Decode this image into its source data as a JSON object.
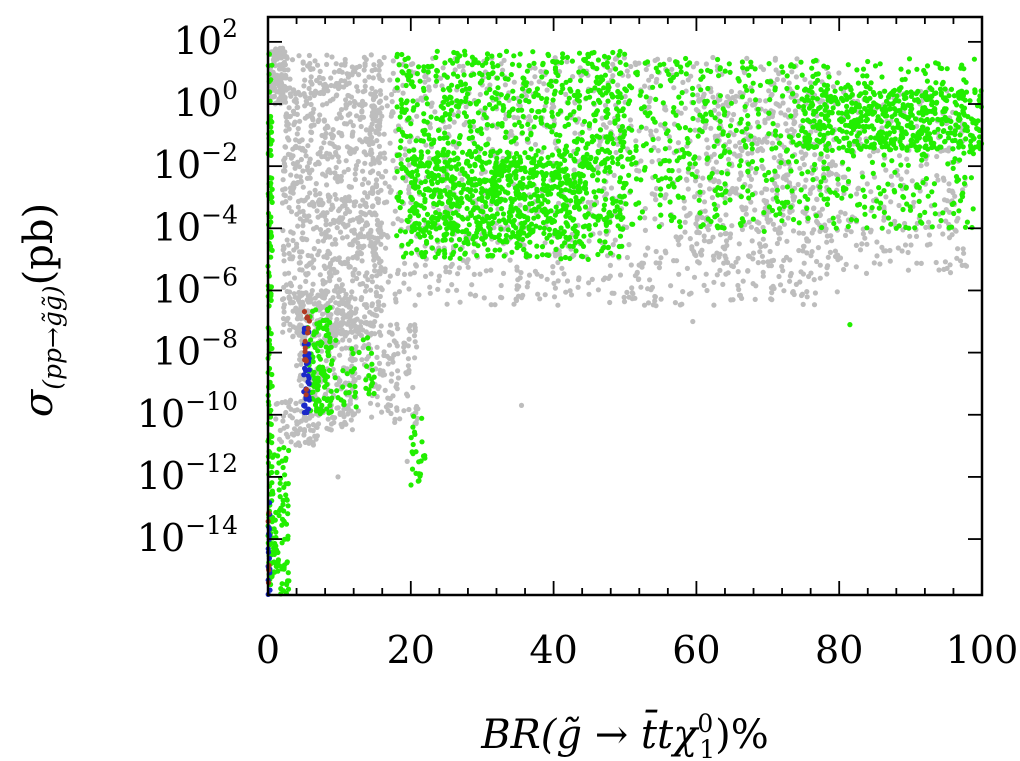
{
  "chart_data": {
    "type": "scatter",
    "title": "",
    "xlabel": {
      "main": "BR(",
      "symbols": "g̃ → t̄tχ",
      "sup": "0",
      "sub": "1",
      "end": ")%"
    },
    "ylabel": {
      "sigma": "σ",
      "subscript": "(pp→g̃g̃)",
      "unit": "(pb)"
    },
    "xlim": [
      0,
      100
    ],
    "ylim_log10": [
      -15.8,
      2.8
    ],
    "y_scale": "log",
    "x_ticks": [
      0,
      20,
      40,
      60,
      80,
      100
    ],
    "x_tick_labels": [
      "0",
      "20",
      "40",
      "60",
      "80",
      "100"
    ],
    "y_tick_exponents": [
      2,
      0,
      -2,
      -4,
      -6,
      -8,
      -10,
      -12,
      -14
    ],
    "y_tick_labels": [
      {
        "base": "10",
        "exp": "2"
      },
      {
        "base": "10",
        "exp": "0"
      },
      {
        "base": "10",
        "exp": "−2"
      },
      {
        "base": "10",
        "exp": "−4"
      },
      {
        "base": "10",
        "exp": "−6"
      },
      {
        "base": "10",
        "exp": "−8"
      },
      {
        "base": "10",
        "exp": "−10"
      },
      {
        "base": "10",
        "exp": "−12"
      },
      {
        "base": "10",
        "exp": "−14"
      }
    ],
    "grid": false,
    "legend": "none",
    "series": [
      {
        "color": "#bdbdbd",
        "regions": [
          {
            "x": [
              0.3,
              2.5
            ],
            "log10y": [
              0.0,
              1.8
            ],
            "n": 120
          },
          {
            "x": [
              2,
              16
            ],
            "log10y": [
              -7.5,
              1.6
            ],
            "n": 900
          },
          {
            "x": [
              4,
              12
            ],
            "log10y": [
              -10.5,
              -6
            ],
            "n": 260
          },
          {
            "x": [
              12,
              21
            ],
            "log10y": [
              -10.3,
              -7
            ],
            "n": 140
          },
          {
            "x": [
              14,
              80
            ],
            "log10y": [
              -6.5,
              1.5
            ],
            "n": 1200
          },
          {
            "x": [
              60,
              98
            ],
            "log10y": [
              -5.5,
              0.5
            ],
            "n": 500
          },
          {
            "x": [
              1,
              7
            ],
            "log10y": [
              -11,
              -9.5
            ],
            "n": 60
          }
        ],
        "points": [
          [
            35.5,
            -9.7
          ],
          [
            59.5,
            -7.0
          ],
          [
            9.8,
            -12.0
          ],
          [
            19.5,
            -11.5
          ]
        ]
      },
      {
        "color": "#22ee00",
        "regions": [
          {
            "x": [
              0,
              0.6
            ],
            "log10y": [
              -15.8,
              1.8
            ],
            "n": 140
          },
          {
            "x": [
              0.5,
              3
            ],
            "log10y": [
              -15.8,
              -11
            ],
            "n": 90
          },
          {
            "x": [
              5.5,
              9
            ],
            "log10y": [
              -10,
              -6.5
            ],
            "n": 120
          },
          {
            "x": [
              9,
              15
            ],
            "log10y": [
              -9.8,
              -7.5
            ],
            "n": 40
          },
          {
            "x": [
              20,
              22
            ],
            "log10y": [
              -12.3,
              -10
            ],
            "n": 25
          },
          {
            "x": [
              18,
              50
            ],
            "log10y": [
              -5,
              1.7
            ],
            "n": 900
          },
          {
            "x": [
              20,
              45
            ],
            "log10y": [
              -4.5,
              -1.5
            ],
            "n": 500
          },
          {
            "x": [
              45,
              99
            ],
            "log10y": [
              -4,
              1.5
            ],
            "n": 700
          },
          {
            "x": [
              75,
              100
            ],
            "log10y": [
              -1.5,
              0.5
            ],
            "n": 450
          }
        ],
        "points": [
          [
            81.5,
            -7.1
          ],
          [
            69.5,
            -4.1
          ],
          [
            88,
            -4.0
          ]
        ]
      },
      {
        "color": "#1a28c8",
        "regions": [
          {
            "x": [
              5,
              5.8
            ],
            "log10y": [
              -10.1,
              -7.2
            ],
            "n": 45
          },
          {
            "x": [
              0,
              0.3
            ],
            "log10y": [
              -15.8,
              -12.8
            ],
            "n": 18
          }
        ],
        "points": []
      },
      {
        "color": "#b03a24",
        "regions": [
          {
            "x": [
              5,
              5.8
            ],
            "log10y": [
              -9.6,
              -6.6
            ],
            "n": 14
          },
          {
            "x": [
              0,
              0.3
            ],
            "log10y": [
              -15.5,
              -12.5
            ],
            "n": 5
          }
        ],
        "points": []
      }
    ]
  }
}
